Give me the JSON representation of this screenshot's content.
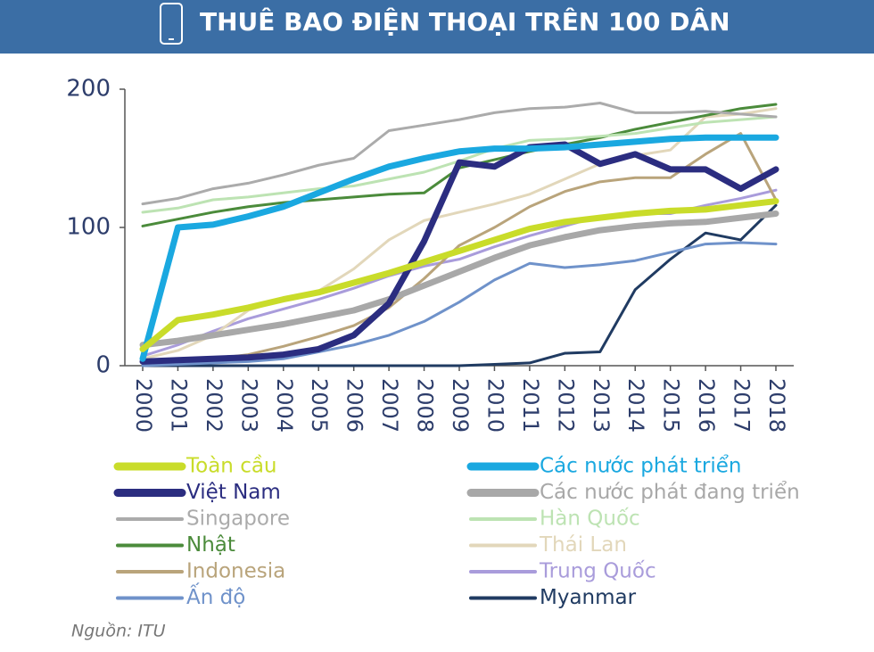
{
  "chart_data": {
    "type": "line",
    "title": "THUÊ BAO ĐIỆN THOẠI TRÊN 100 DÂN",
    "source": "Nguồn: ITU",
    "categories": [
      "2000",
      "2001",
      "2002",
      "2003",
      "2004",
      "2005",
      "2006",
      "2007",
      "2008",
      "2009",
      "2010",
      "2011",
      "2012",
      "2013",
      "2014",
      "2015",
      "2016",
      "2017",
      "2018"
    ],
    "ylim": [
      0,
      200
    ],
    "yticks": [
      0,
      100,
      200
    ],
    "series": [
      {
        "name": "Toàn cầu",
        "color": "#c9dc2a",
        "thick": true,
        "values": [
          12,
          33,
          37,
          42,
          48,
          53,
          60,
          67,
          75,
          83,
          91,
          99,
          104,
          107,
          110,
          112,
          113,
          116,
          119
        ]
      },
      {
        "name": "Các nước phát triển",
        "color": "#1aa8e0",
        "thick": true,
        "values": [
          5,
          100,
          102,
          108,
          115,
          125,
          135,
          144,
          150,
          155,
          157,
          157,
          158,
          160,
          162,
          164,
          165,
          165,
          165
        ]
      },
      {
        "name": "Việt Nam",
        "color": "#2b2d80",
        "thick": true,
        "values": [
          3,
          4,
          5,
          6,
          8,
          12,
          22,
          45,
          90,
          147,
          144,
          158,
          160,
          146,
          153,
          142,
          142,
          128,
          142
        ]
      },
      {
        "name": "Các nước phát đang triển",
        "color": "#a8a8a8",
        "thick": true,
        "values": [
          15,
          18,
          22,
          26,
          30,
          35,
          40,
          48,
          58,
          68,
          78,
          87,
          93,
          98,
          101,
          103,
          104,
          107,
          110
        ]
      },
      {
        "name": "Singapore",
        "color": "#ababab",
        "thick": false,
        "values": [
          117,
          121,
          128,
          132,
          138,
          145,
          150,
          170,
          174,
          178,
          183,
          186,
          187,
          190,
          183,
          183,
          184,
          182,
          180
        ]
      },
      {
        "name": "Hàn Quốc",
        "color": "#bde3b3",
        "thick": false,
        "values": [
          111,
          114,
          120,
          122,
          125,
          128,
          130,
          135,
          140,
          148,
          157,
          163,
          164,
          166,
          168,
          172,
          176,
          178,
          180
        ]
      },
      {
        "name": "Nhật",
        "color": "#4b8b3b",
        "thick": false,
        "values": [
          101,
          106,
          111,
          115,
          118,
          120,
          122,
          124,
          125,
          143,
          149,
          155,
          160,
          165,
          171,
          176,
          181,
          186,
          189
        ]
      },
      {
        "name": "Thái Lan",
        "color": "#e2d7ba",
        "thick": false,
        "values": [
          5,
          11,
          22,
          40,
          48,
          54,
          70,
          91,
          105,
          111,
          117,
          124,
          135,
          146,
          152,
          156,
          180,
          182,
          186
        ]
      },
      {
        "name": "Indonesia",
        "color": "#b9a47b",
        "thick": false,
        "values": [
          2,
          3,
          5,
          8,
          14,
          21,
          29,
          42,
          63,
          87,
          100,
          115,
          126,
          133,
          136,
          136,
          153,
          168,
          120
        ]
      },
      {
        "name": "Trung Quốc",
        "color": "#a99cdb",
        "thick": false,
        "values": [
          7,
          15,
          25,
          34,
          41,
          48,
          56,
          65,
          72,
          77,
          86,
          94,
          101,
          108,
          110,
          110,
          116,
          121,
          127
        ]
      },
      {
        "name": "Ấn độ",
        "color": "#6f92ca",
        "thick": false,
        "values": [
          0,
          1,
          2,
          3,
          5,
          10,
          15,
          22,
          32,
          46,
          62,
          74,
          71,
          73,
          76,
          82,
          88,
          89,
          88
        ]
      },
      {
        "name": "Myanmar",
        "color": "#203b62",
        "thick": false,
        "values": [
          0,
          0,
          0,
          0,
          0,
          0,
          0,
          0,
          0,
          0,
          1,
          2,
          9,
          10,
          55,
          77,
          96,
          91,
          116
        ]
      }
    ]
  }
}
